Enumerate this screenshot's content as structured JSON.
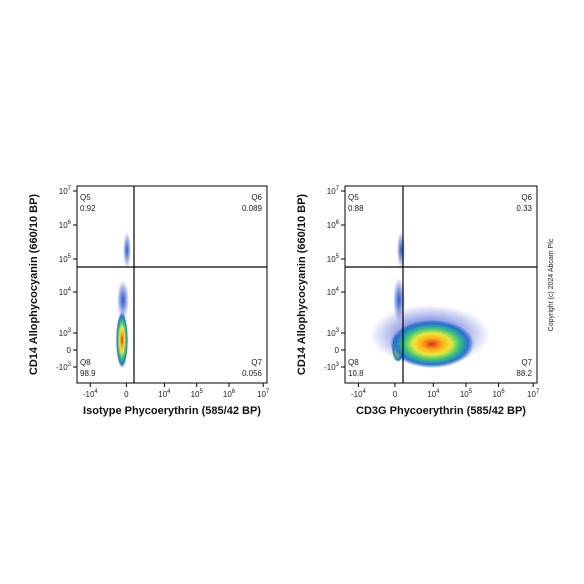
{
  "panels": [
    {
      "y_label": "CD14 Allophycocyanin (660/10 BP)",
      "x_label": "Isotype Phycoerythrin (585/42 BP)",
      "x_ticks": [
        {
          "base": "-10",
          "exp": "4"
        },
        {
          "base": "0"
        },
        {
          "base": "10",
          "exp": "4"
        },
        {
          "base": "10",
          "exp": "5"
        },
        {
          "base": "10",
          "exp": "6"
        },
        {
          "base": "10",
          "exp": "7"
        }
      ],
      "y_ticks": [
        {
          "base": "10",
          "exp": "7"
        },
        {
          "base": "10",
          "exp": "6"
        },
        {
          "base": "10",
          "exp": "5"
        },
        {
          "base": "10",
          "exp": "4"
        },
        {
          "base": "10",
          "exp": "3"
        },
        {
          "base": "0"
        },
        {
          "base": "-10",
          "exp": "3"
        }
      ],
      "quadrants": [
        {
          "name": "Q5",
          "value": 0.92
        },
        {
          "name": "Q6",
          "value": 0.089
        },
        {
          "name": "Q8",
          "value": 98.9
        },
        {
          "name": "Q7",
          "value": 0.056
        }
      ]
    },
    {
      "y_label": "CD14 Allophycocyanin (660/10 BP)",
      "x_label": "CD3G Phycoerythrin (585/42 BP)",
      "x_ticks": [
        {
          "base": "-10",
          "exp": "4"
        },
        {
          "base": "0"
        },
        {
          "base": "10",
          "exp": "4"
        },
        {
          "base": "10",
          "exp": "5"
        },
        {
          "base": "10",
          "exp": "6"
        },
        {
          "base": "10",
          "exp": "7"
        }
      ],
      "y_ticks": [
        {
          "base": "10",
          "exp": "7"
        },
        {
          "base": "10",
          "exp": "6"
        },
        {
          "base": "10",
          "exp": "5"
        },
        {
          "base": "10",
          "exp": "4"
        },
        {
          "base": "10",
          "exp": "3"
        },
        {
          "base": "0"
        },
        {
          "base": "-10",
          "exp": "3"
        }
      ],
      "quadrants": [
        {
          "name": "Q5",
          "value": 0.88
        },
        {
          "name": "Q6",
          "value": 0.33
        },
        {
          "name": "Q8",
          "value": 10.8
        },
        {
          "name": "Q7",
          "value": 88.2
        }
      ]
    }
  ],
  "copyright": "Copyright (c) 2024 Abcam Plc"
}
